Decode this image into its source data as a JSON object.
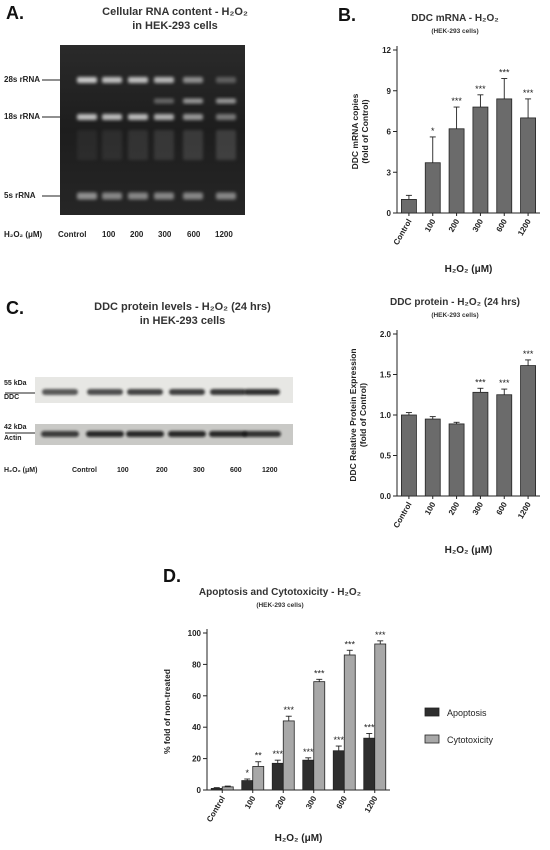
{
  "panelA": {
    "letter": "A.",
    "title_line1": "Cellular RNA content - H₂O₂",
    "title_line2": "in HEK-293 cells",
    "band_labels": [
      "28s rRNA",
      "18s rRNA",
      "5s rRNA"
    ],
    "axis_label": "H₂O₂ (μM)",
    "lanes": [
      "Control",
      "100",
      "200",
      "300",
      "600",
      "1200"
    ]
  },
  "panelC": {
    "letter": "C.",
    "title_line1": "DDC protein levels - H₂O₂ (24 hrs)",
    "title_line2": "in HEK-293 cells",
    "ddc_kda": "55 kDa",
    "ddc_name": "DDC",
    "actin_kda": "42 kDa",
    "actin_name": "Actin",
    "axis_label": "H₂O₂ (μM)",
    "lanes": [
      "Control",
      "100",
      "200",
      "300",
      "600",
      "1200"
    ]
  },
  "chart_data": [
    {
      "id": "B",
      "letter": "B.",
      "type": "bar",
      "title": "DDC mRNA - H₂O₂",
      "subtitle": "(HEK-293 cells)",
      "xlabel": "H₂O₂ (μM)",
      "ylabel": "DDC mRNA copies (fold of Control)",
      "categories": [
        "Control",
        "100",
        "200",
        "300",
        "600",
        "1200"
      ],
      "values": [
        1.0,
        3.7,
        6.2,
        7.8,
        8.4,
        7.0
      ],
      "errors": [
        0.3,
        1.9,
        1.6,
        0.9,
        1.5,
        1.4
      ],
      "significance": [
        "",
        "*",
        "***",
        "***",
        "***",
        "***"
      ],
      "ylim": [
        0,
        12
      ],
      "yticks": [
        "0",
        "3",
        "6",
        "9",
        "12"
      ],
      "bar_color": "#6b6b6b"
    },
    {
      "id": "Cchart",
      "type": "bar",
      "title": "DDC protein - H₂O₂ (24 hrs)",
      "subtitle": "(HEK-293 cells)",
      "xlabel": "H₂O₂ (μM)",
      "ylabel": "DDC Relative Protein Expression (fold of Control)",
      "categories": [
        "Control",
        "100",
        "200",
        "300",
        "600",
        "1200"
      ],
      "values": [
        1.0,
        0.95,
        0.89,
        1.28,
        1.25,
        1.61
      ],
      "errors": [
        0.03,
        0.03,
        0.02,
        0.05,
        0.07,
        0.07
      ],
      "significance": [
        "",
        "",
        "",
        "***",
        "***",
        "***"
      ],
      "ylim": [
        0,
        2.0
      ],
      "yticks": [
        "0.0",
        "0.5",
        "1.0",
        "1.5",
        "2.0"
      ],
      "bar_color": "#6b6b6b"
    },
    {
      "id": "D",
      "letter": "D.",
      "type": "bar",
      "title": "Apoptosis and Cytotoxicity - H₂O₂",
      "subtitle": "(HEK-293 cells)",
      "xlabel": "H₂O₂ (μM)",
      "ylabel": "% fold of non-treated",
      "categories": [
        "Control",
        "100",
        "200",
        "300",
        "600",
        "1200"
      ],
      "series": [
        {
          "name": "Apoptosis",
          "color": "#2e2e2e",
          "values": [
            1,
            6,
            17,
            19,
            25,
            33
          ],
          "errors": [
            0.5,
            1,
            2,
            1.5,
            3,
            3
          ],
          "significance": [
            "",
            "*",
            "***",
            "***",
            "***",
            "***"
          ]
        },
        {
          "name": "Cytotoxicity",
          "color": "#a8a8a8",
          "values": [
            2,
            15,
            44,
            69,
            86,
            93
          ],
          "errors": [
            0.5,
            3,
            3,
            1.5,
            3,
            2
          ],
          "significance": [
            "",
            "**",
            "***",
            "***",
            "***",
            "***"
          ]
        }
      ],
      "ylim": [
        0,
        100
      ],
      "yticks": [
        "0",
        "20",
        "40",
        "60",
        "80",
        "100"
      ],
      "legend": "right"
    }
  ]
}
